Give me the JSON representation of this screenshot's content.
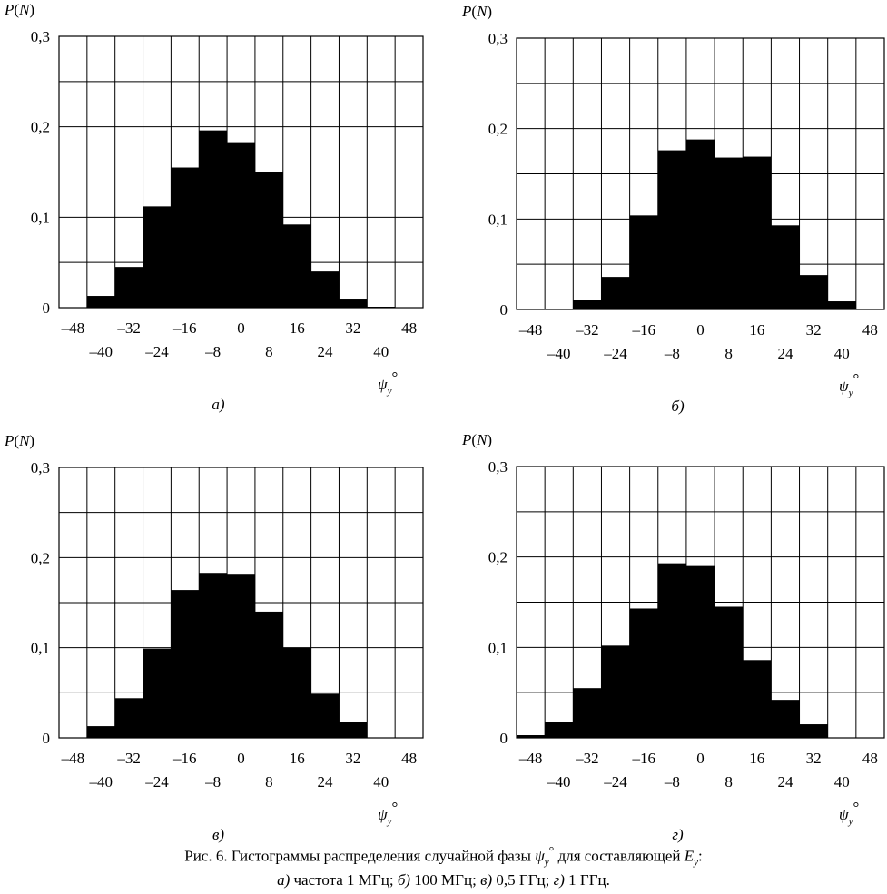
{
  "chart_data": [
    {
      "type": "bar",
      "panel_label": "а)",
      "ylabel": "P(N)",
      "xlabel": "ψy°",
      "ylim": [
        0,
        0.3
      ],
      "xlim": [
        -52,
        52
      ],
      "grid": true,
      "y_ticks": [
        "0",
        "0,1",
        "0,2",
        "0,3"
      ],
      "x_ticks_top": [
        "–48",
        "–32",
        "–16",
        "0",
        "16",
        "32",
        "48"
      ],
      "x_ticks_bottom": [
        "–40",
        "–24",
        "–8",
        "8",
        "24",
        "40"
      ],
      "bin_edges": [
        -52,
        -44,
        -36,
        -28,
        -20,
        -12,
        -4,
        4,
        12,
        20,
        28,
        36,
        44,
        52
      ],
      "values": [
        0,
        0.013,
        0.045,
        0.112,
        0.155,
        0.196,
        0.182,
        0.15,
        0.092,
        0.04,
        0.01,
        0.001,
        0
      ]
    },
    {
      "type": "bar",
      "panel_label": "б)",
      "ylabel": "P(N)",
      "xlabel": "ψy°",
      "ylim": [
        0,
        0.3
      ],
      "xlim": [
        -52,
        52
      ],
      "grid": true,
      "y_ticks": [
        "0",
        "0,1",
        "0,2",
        "0,3"
      ],
      "x_ticks_top": [
        "–48",
        "–32",
        "–16",
        "0",
        "16",
        "32",
        "48"
      ],
      "x_ticks_bottom": [
        "–40",
        "–24",
        "–8",
        "8",
        "24",
        "40"
      ],
      "bin_edges": [
        -52,
        -44,
        -36,
        -28,
        -20,
        -12,
        -4,
        4,
        12,
        20,
        28,
        36,
        44,
        52
      ],
      "values": [
        0,
        0.001,
        0.011,
        0.036,
        0.104,
        0.176,
        0.188,
        0.168,
        0.169,
        0.093,
        0.038,
        0.009,
        0
      ]
    },
    {
      "type": "bar",
      "panel_label": "в)",
      "ylabel": "P(N)",
      "xlabel": "ψy°",
      "ylim": [
        0,
        0.3
      ],
      "xlim": [
        -52,
        52
      ],
      "grid": true,
      "y_ticks": [
        "0",
        "0,1",
        "0,2",
        "0,3"
      ],
      "x_ticks_top": [
        "–48",
        "–32",
        "–16",
        "0",
        "16",
        "32",
        "48"
      ],
      "x_ticks_bottom": [
        "–40",
        "–24",
        "–8",
        "8",
        "24",
        "40"
      ],
      "bin_edges": [
        -52,
        -44,
        -36,
        -28,
        -20,
        -12,
        -4,
        4,
        12,
        20,
        28,
        36,
        44,
        52
      ],
      "values": [
        0,
        0.013,
        0.044,
        0.099,
        0.164,
        0.183,
        0.182,
        0.14,
        0.1,
        0.049,
        0.018,
        0,
        0
      ]
    },
    {
      "type": "bar",
      "panel_label": "г)",
      "ylabel": "P(N)",
      "xlabel": "ψy°",
      "ylim": [
        0,
        0.3
      ],
      "xlim": [
        -52,
        52
      ],
      "grid": true,
      "y_ticks": [
        "0",
        "0,1",
        "0,2",
        "0,3"
      ],
      "x_ticks_top": [
        "–48",
        "–32",
        "–16",
        "0",
        "16",
        "32",
        "48"
      ],
      "x_ticks_bottom": [
        "–40",
        "–24",
        "–8",
        "8",
        "24",
        "40"
      ],
      "bin_edges": [
        -52,
        -44,
        -36,
        -28,
        -20,
        -12,
        -4,
        4,
        12,
        20,
        28,
        36,
        44,
        52
      ],
      "values": [
        0.003,
        0.018,
        0.055,
        0.102,
        0.143,
        0.193,
        0.19,
        0.145,
        0.086,
        0.042,
        0.015,
        0,
        0
      ]
    }
  ],
  "caption": {
    "line1_prefix": "Рис. 6. Гистограммы распределения случайной фазы ",
    "line1_symbol": "ψ",
    "line1_symbol_sub": "y",
    "line1_symbol_sup": "°",
    "line1_suffix": " для составляющей ",
    "line1_E": "E",
    "line1_E_sub": "y",
    "line1_end": ":",
    "line2_a": "а)",
    "line2_a_text": " частота 1 МГц; ",
    "line2_b": "б)",
    "line2_b_text": " 100 МГц; ",
    "line2_c": "в)",
    "line2_c_text": " 0,5 ГГц; ",
    "line2_d": "г)",
    "line2_d_text": " 1 ГГц."
  }
}
